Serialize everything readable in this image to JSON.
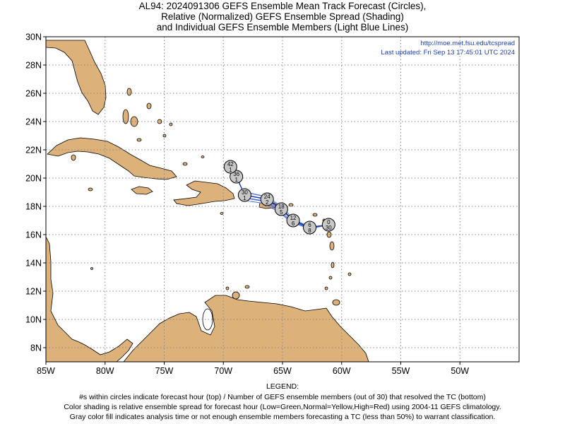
{
  "title": {
    "line1": "AL94: 2024091306 GEFS Ensemble Mean Track Forecast (Circles),",
    "line2": "Relative (Normalized) GEFS Ensemble Spread (Shading)",
    "line3": "and Individual GEFS Ensemble Members (Light Blue Lines)"
  },
  "source_url": "http://moe.met.fsu.edu/tcspread",
  "last_updated": "Last updated: Fri Sep 13 17:45:01 UTC 2024",
  "map": {
    "lon_range": [
      -85,
      -45
    ],
    "lat_range": [
      7,
      30
    ],
    "x_ticks": [
      {
        "lon": -85,
        "label": "85W"
      },
      {
        "lon": -80,
        "label": "80W"
      },
      {
        "lon": -75,
        "label": "75W"
      },
      {
        "lon": -70,
        "label": "70W"
      },
      {
        "lon": -65,
        "label": "65W"
      },
      {
        "lon": -60,
        "label": "60W"
      },
      {
        "lon": -55,
        "label": "55W"
      },
      {
        "lon": -50,
        "label": "50W"
      }
    ],
    "y_ticks": [
      {
        "lat": 8,
        "label": "8N"
      },
      {
        "lat": 10,
        "label": "10N"
      },
      {
        "lat": 12,
        "label": "12N"
      },
      {
        "lat": 14,
        "label": "14N"
      },
      {
        "lat": 16,
        "label": "16N"
      },
      {
        "lat": 18,
        "label": "18N"
      },
      {
        "lat": 20,
        "label": "20N"
      },
      {
        "lat": 22,
        "label": "22N"
      },
      {
        "lat": 24,
        "label": "24N"
      },
      {
        "lat": 26,
        "label": "26N"
      },
      {
        "lat": 28,
        "label": "28N"
      },
      {
        "lat": 30,
        "label": "30N"
      }
    ],
    "grid": true,
    "colors": {
      "land": "#dcb17a",
      "track": "#4a6cd4",
      "circle": "#c8c8c8",
      "link": "#1a3fbf"
    }
  },
  "track": [
    {
      "hour": "0",
      "members": "30",
      "lon": -61.1,
      "lat": 16.7
    },
    {
      "hour": "6",
      "members": "8",
      "lon": -62.7,
      "lat": 16.5
    },
    {
      "hour": "12",
      "members": "6",
      "lon": -64.1,
      "lat": 17.0
    },
    {
      "hour": "18",
      "members": "5",
      "lon": -65.1,
      "lat": 17.8
    },
    {
      "hour": "24",
      "members": "2",
      "lon": -66.3,
      "lat": 18.5
    },
    {
      "hour": "30",
      "members": "1",
      "lon": -68.2,
      "lat": 18.8
    },
    {
      "hour": "36",
      "members": "1",
      "lon": -68.9,
      "lat": 20.1
    },
    {
      "hour": "42",
      "members": "1",
      "lon": -69.4,
      "lat": 20.8
    }
  ],
  "legend": {
    "heading": "LEGEND:",
    "line1": "#s within circles indicate forecast hour (top) / Number of GEFS ensemble members (out of 30) that resolved the TC (bottom)",
    "line2": "Color shading is relative ensemble spread for forecast hour (Low=Green,Normal=Yellow,High=Red) using 2004-11 GEFS climatology.",
    "line3": "Gray color fill indicates analysis time or not enough ensemble members forecasting a TC (less than 50%) to warrant classification."
  }
}
